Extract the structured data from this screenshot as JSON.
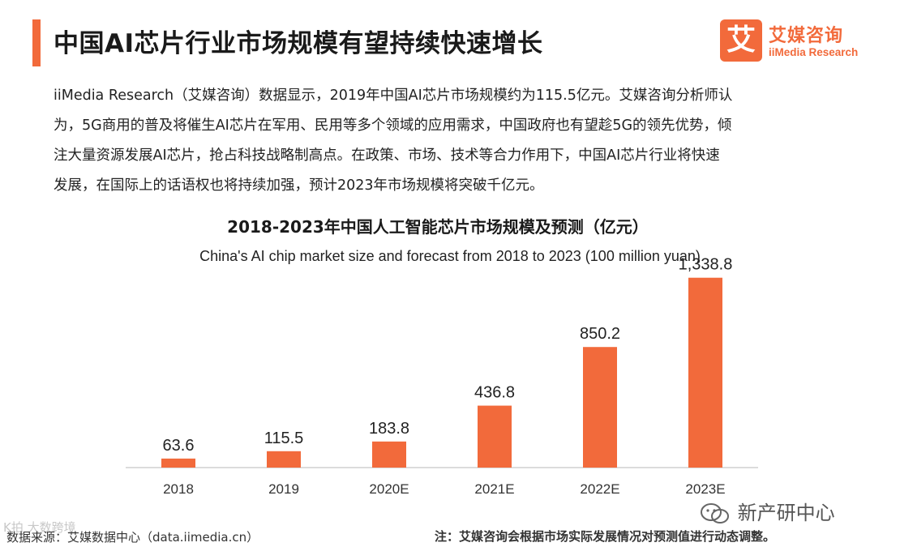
{
  "colors": {
    "accent": "#f26a3b",
    "bar": "#f26a3b",
    "axis": "#d0d0d0"
  },
  "header": {
    "title": "中国AI芯片行业市场规模有望持续快速增长",
    "logo_mark": "艾",
    "logo_cn": "艾媒咨询",
    "logo_en": "iiMedia Research"
  },
  "intro": {
    "lines": [
      "iiMedia Research（艾媒咨询）数据显示，2019年中国AI芯片市场规模约为115.5亿元。艾媒咨询分析师认",
      "为，5G商用的普及将催生AI芯片在军用、民用等多个领域的应用需求，中国政府也有望趁5G的领先优势，倾",
      "注大量资源发展AI芯片，抢占科技战略制高点。在政策、市场、技术等合力作用下，中国AI芯片行业将快速",
      "发展，在国际上的话语权也将持续加强，预计2023年市场规模将突破千亿元。"
    ]
  },
  "chart_data": {
    "type": "bar",
    "title": "2018-2023年中国人工智能芯片市场规模及预测（亿元）",
    "subtitle": "China's  AI chip market size and forecast from 2018 to 2023 (100 million yuan)",
    "categories": [
      "2018",
      "2019",
      "2020E",
      "2021E",
      "2022E",
      "2023E"
    ],
    "values": [
      63.6,
      115.5,
      183.8,
      436.8,
      850.2,
      1338.8
    ],
    "value_labels": [
      "63.6",
      "115.5",
      "183.8",
      "436.8",
      "850.2",
      "1,338.8"
    ],
    "xlabel": "",
    "ylabel": "亿元",
    "ylim": [
      0,
      1400
    ],
    "grid": false,
    "legend": "none"
  },
  "footer": {
    "source": "数据来源：艾媒数据中心（data.iimedia.cn）",
    "note": "注：艾媒咨询会根据市场实际发展情况对预测值进行动态调整。",
    "watermark_left": "K拍 大数跨境",
    "watermark_right": "新产研中心"
  }
}
